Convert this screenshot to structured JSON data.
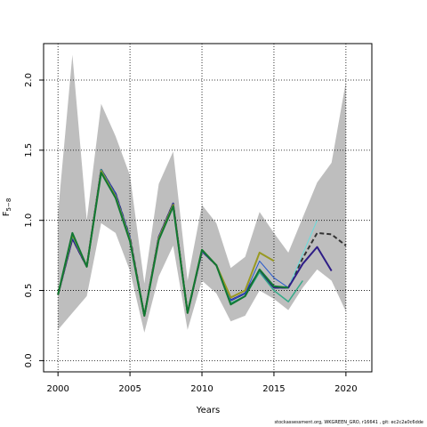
{
  "chart_data": {
    "type": "line",
    "xlabel": "Years",
    "ylabel": "F",
    "ylabel_sub": "5−8",
    "xlim": [
      1999,
      2021.8
    ],
    "ylim": [
      -0.08,
      2.26
    ],
    "xticks": [
      2000,
      2005,
      2010,
      2015,
      2020
    ],
    "yticks": [
      0.0,
      0.5,
      1.0,
      1.5,
      2.0
    ],
    "grid": "dotted",
    "band": {
      "color": "#bebebe",
      "x": [
        2000,
        2001,
        2002,
        2003,
        2004,
        2005,
        2006,
        2007,
        2008,
        2009,
        2010,
        2011,
        2012,
        2013,
        2014,
        2015,
        2016,
        2017,
        2018,
        2019,
        2020
      ],
      "upper": [
        1.05,
        2.18,
        1.0,
        1.83,
        1.6,
        1.32,
        0.55,
        1.26,
        1.49,
        0.57,
        1.11,
        0.98,
        0.66,
        0.74,
        1.06,
        0.91,
        0.77,
        1.02,
        1.27,
        1.41,
        1.99
      ],
      "lower": [
        0.22,
        0.34,
        0.46,
        0.98,
        0.91,
        0.64,
        0.2,
        0.6,
        0.82,
        0.22,
        0.57,
        0.48,
        0.28,
        0.32,
        0.5,
        0.44,
        0.36,
        0.52,
        0.65,
        0.57,
        0.35
      ]
    },
    "series": [
      {
        "color": "#333333",
        "dash": "5,3",
        "width": 2,
        "x": [
          2000,
          2001,
          2002,
          2003,
          2004,
          2005,
          2006,
          2007,
          2008,
          2009,
          2010,
          2011,
          2012,
          2013,
          2014,
          2015,
          2016,
          2017,
          2018,
          2019,
          2020
        ],
        "y": [
          0.47,
          0.87,
          0.67,
          1.36,
          1.19,
          0.88,
          0.32,
          0.88,
          1.12,
          0.34,
          0.78,
          0.68,
          0.43,
          0.48,
          0.64,
          0.52,
          0.52,
          0.73,
          0.91,
          0.9,
          0.82
        ]
      },
      {
        "color": "#66dddd",
        "width": 1,
        "x": [
          2000,
          2001,
          2002,
          2003,
          2004,
          2005,
          2006,
          2007,
          2008,
          2009,
          2010,
          2011,
          2012,
          2013,
          2014,
          2015,
          2016,
          2017,
          2018
        ],
        "y": [
          0.47,
          0.87,
          0.67,
          1.36,
          1.19,
          0.88,
          0.32,
          0.88,
          1.12,
          0.34,
          0.78,
          0.68,
          0.43,
          0.48,
          0.64,
          0.52,
          0.52,
          0.76,
          1.0
        ]
      },
      {
        "color": "#2e1d86",
        "width": 2,
        "x": [
          2000,
          2001,
          2002,
          2003,
          2004,
          2005,
          2006,
          2007,
          2008,
          2009,
          2010,
          2011,
          2012,
          2013,
          2014,
          2015,
          2016,
          2017,
          2018,
          2019
        ],
        "y": [
          0.47,
          0.87,
          0.67,
          1.36,
          1.19,
          0.87,
          0.32,
          0.88,
          1.12,
          0.34,
          0.78,
          0.68,
          0.43,
          0.48,
          0.64,
          0.52,
          0.52,
          0.69,
          0.81,
          0.64
        ]
      },
      {
        "color": "#2255cc",
        "width": 1,
        "x": [
          2000,
          2001,
          2002,
          2003,
          2004,
          2005,
          2006,
          2007,
          2008,
          2009,
          2010,
          2011,
          2012,
          2013,
          2014,
          2015,
          2016
        ],
        "y": [
          0.47,
          0.88,
          0.67,
          1.36,
          1.19,
          0.88,
          0.32,
          0.88,
          1.12,
          0.34,
          0.78,
          0.68,
          0.43,
          0.48,
          0.71,
          0.59,
          0.52
        ]
      },
      {
        "color": "#33aa88",
        "width": 1.5,
        "x": [
          2000,
          2001,
          2002,
          2003,
          2004,
          2005,
          2006,
          2007,
          2008,
          2009,
          2010,
          2011,
          2012,
          2013,
          2014,
          2015,
          2016,
          2017
        ],
        "y": [
          0.47,
          0.89,
          0.67,
          1.36,
          1.17,
          0.86,
          0.32,
          0.87,
          1.11,
          0.34,
          0.79,
          0.68,
          0.41,
          0.46,
          0.63,
          0.5,
          0.42,
          0.57
        ]
      },
      {
        "color": "#999922",
        "width": 2,
        "x": [
          2000,
          2001,
          2002,
          2003,
          2004,
          2005,
          2006,
          2007,
          2008,
          2009,
          2010,
          2011,
          2012,
          2013,
          2014,
          2015
        ],
        "y": [
          0.47,
          0.9,
          0.67,
          1.35,
          1.17,
          0.86,
          0.32,
          0.87,
          1.11,
          0.34,
          0.79,
          0.68,
          0.45,
          0.5,
          0.77,
          0.71
        ]
      },
      {
        "color": "#117733",
        "width": 2,
        "x": [
          2000,
          2001,
          2002,
          2003,
          2004,
          2005,
          2006,
          2007,
          2008,
          2009,
          2010,
          2011,
          2012,
          2013,
          2014,
          2015,
          2016
        ],
        "y": [
          0.47,
          0.91,
          0.67,
          1.34,
          1.16,
          0.85,
          0.32,
          0.86,
          1.1,
          0.34,
          0.79,
          0.68,
          0.4,
          0.46,
          0.65,
          0.53,
          0.52
        ]
      }
    ]
  },
  "footer": "stockassessment.org, WKGREEN_GRO, r16641 , git: ec2c2a0c6dde"
}
